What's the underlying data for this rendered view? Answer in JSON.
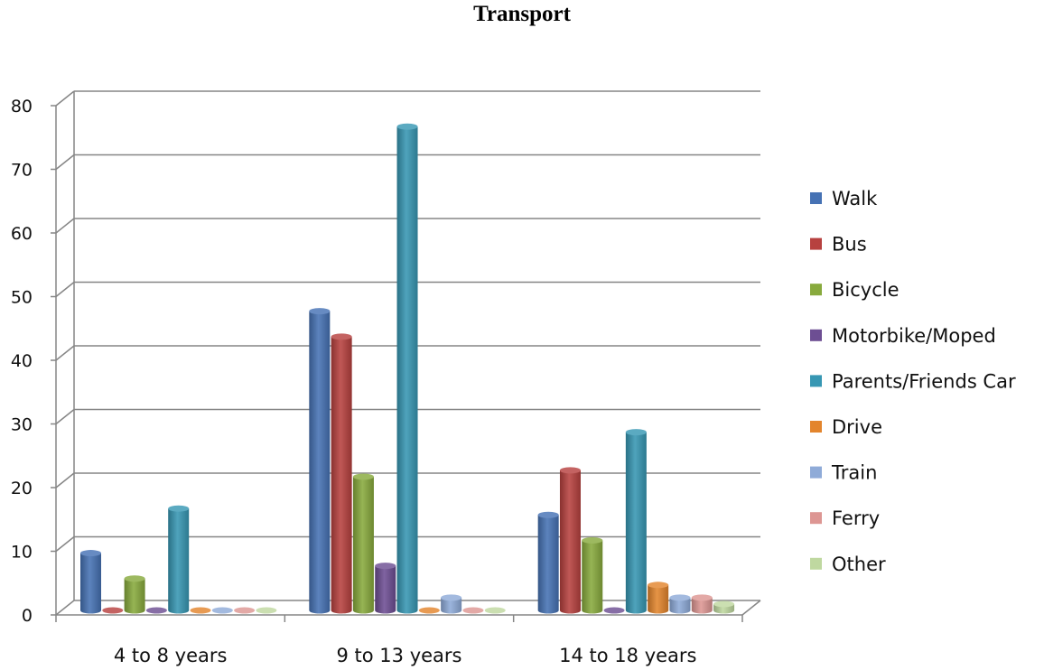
{
  "chart_data": {
    "type": "bar",
    "title": "Transport",
    "categories": [
      "4 to 8 years",
      "9 to 13 years",
      "14 to 18 years"
    ],
    "ylim": [
      0,
      80
    ],
    "yticks": [
      0,
      10,
      20,
      30,
      40,
      50,
      60,
      70,
      80
    ],
    "grid": true,
    "legend_position": "right",
    "series": [
      {
        "name": "Walk",
        "color": "#4672b4",
        "values": [
          9,
          47,
          15
        ]
      },
      {
        "name": "Bus",
        "color": "#b7413f",
        "values": [
          0,
          43,
          22
        ]
      },
      {
        "name": "Bicycle",
        "color": "#88aa3d",
        "values": [
          5,
          21,
          11
        ]
      },
      {
        "name": "Motorbike/Moped",
        "color": "#6d4e93",
        "values": [
          0,
          7,
          0
        ]
      },
      {
        "name": "Parents/Friends Car",
        "color": "#3797b3",
        "values": [
          16,
          76,
          28
        ]
      },
      {
        "name": "Drive",
        "color": "#e3852d",
        "values": [
          0,
          0,
          4
        ]
      },
      {
        "name": "Train",
        "color": "#8fabd8",
        "values": [
          0,
          2,
          2
        ]
      },
      {
        "name": "Ferry",
        "color": "#dd9693",
        "values": [
          0,
          0,
          2
        ]
      },
      {
        "name": "Other",
        "color": "#bfd8a0",
        "values": [
          0,
          0,
          1
        ]
      }
    ]
  }
}
